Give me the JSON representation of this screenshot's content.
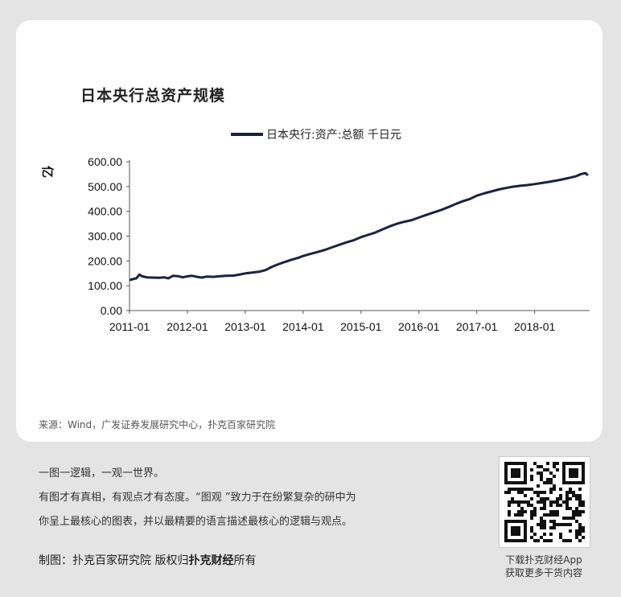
{
  "chart_data": {
    "type": "line",
    "title": "日本央行总资产规模",
    "ylabel": "亿",
    "ylim": [
      0,
      600
    ],
    "yticks": [
      "0.00",
      "100.00",
      "200.00",
      "300.00",
      "400.00",
      "500.00",
      "600.00"
    ],
    "xticks": [
      "2011-01",
      "2012-01",
      "2013-01",
      "2014-01",
      "2015-01",
      "2016-01",
      "2017-01",
      "2018-01"
    ],
    "legend_position": "top",
    "series": [
      {
        "name": "日本央行:资产:总额 千日元",
        "color": "#1a2340",
        "points": [
          [
            2011.0,
            123
          ],
          [
            2011.08,
            128
          ],
          [
            2011.12,
            130
          ],
          [
            2011.17,
            145
          ],
          [
            2011.22,
            138
          ],
          [
            2011.3,
            134
          ],
          [
            2011.4,
            133
          ],
          [
            2011.5,
            132
          ],
          [
            2011.6,
            134
          ],
          [
            2011.67,
            130
          ],
          [
            2011.75,
            140
          ],
          [
            2011.85,
            138
          ],
          [
            2011.92,
            134
          ],
          [
            2012.0,
            138
          ],
          [
            2012.08,
            140
          ],
          [
            2012.17,
            136
          ],
          [
            2012.25,
            133
          ],
          [
            2012.33,
            137
          ],
          [
            2012.45,
            136
          ],
          [
            2012.55,
            138
          ],
          [
            2012.67,
            140
          ],
          [
            2012.8,
            141
          ],
          [
            2012.92,
            146
          ],
          [
            2013.0,
            150
          ],
          [
            2013.12,
            153
          ],
          [
            2013.25,
            157
          ],
          [
            2013.35,
            163
          ],
          [
            2013.45,
            175
          ],
          [
            2013.55,
            185
          ],
          [
            2013.67,
            195
          ],
          [
            2013.8,
            205
          ],
          [
            2013.92,
            213
          ],
          [
            2014.0,
            220
          ],
          [
            2014.12,
            228
          ],
          [
            2014.25,
            236
          ],
          [
            2014.38,
            245
          ],
          [
            2014.5,
            255
          ],
          [
            2014.62,
            265
          ],
          [
            2014.75,
            275
          ],
          [
            2014.88,
            284
          ],
          [
            2015.0,
            296
          ],
          [
            2015.12,
            305
          ],
          [
            2015.25,
            315
          ],
          [
            2015.38,
            328
          ],
          [
            2015.5,
            340
          ],
          [
            2015.62,
            350
          ],
          [
            2015.75,
            358
          ],
          [
            2015.88,
            365
          ],
          [
            2016.0,
            375
          ],
          [
            2016.12,
            385
          ],
          [
            2016.25,
            395
          ],
          [
            2016.38,
            405
          ],
          [
            2016.5,
            416
          ],
          [
            2016.62,
            428
          ],
          [
            2016.75,
            440
          ],
          [
            2016.88,
            450
          ],
          [
            2017.0,
            463
          ],
          [
            2017.12,
            472
          ],
          [
            2017.25,
            480
          ],
          [
            2017.38,
            488
          ],
          [
            2017.5,
            494
          ],
          [
            2017.62,
            499
          ],
          [
            2017.75,
            503
          ],
          [
            2017.88,
            506
          ],
          [
            2018.0,
            510
          ],
          [
            2018.12,
            514
          ],
          [
            2018.25,
            519
          ],
          [
            2018.38,
            524
          ],
          [
            2018.5,
            530
          ],
          [
            2018.62,
            536
          ],
          [
            2018.72,
            542
          ],
          [
            2018.8,
            550
          ],
          [
            2018.88,
            554
          ],
          [
            2018.92,
            545
          ]
        ]
      }
    ],
    "source": "来源：Wind，广发证券发展研究中心，扑克百家研究院"
  },
  "footer": {
    "slogan": "一图一逻辑，一观一世界。",
    "desc1": "有图才有真相，有观点才有态度。“图观 ”致力于在纷繁复杂的研中为",
    "desc2": "你呈上最核心的图表，并以最精要的语言描述最核心的逻辑与观点。",
    "credit_prefix": "制图：扑克百家研究院   版权归",
    "credit_brand": "扑克财经",
    "credit_suffix": "所有",
    "qr_caption1": "下载扑克财经App",
    "qr_caption2": "获取更多干货内容"
  }
}
